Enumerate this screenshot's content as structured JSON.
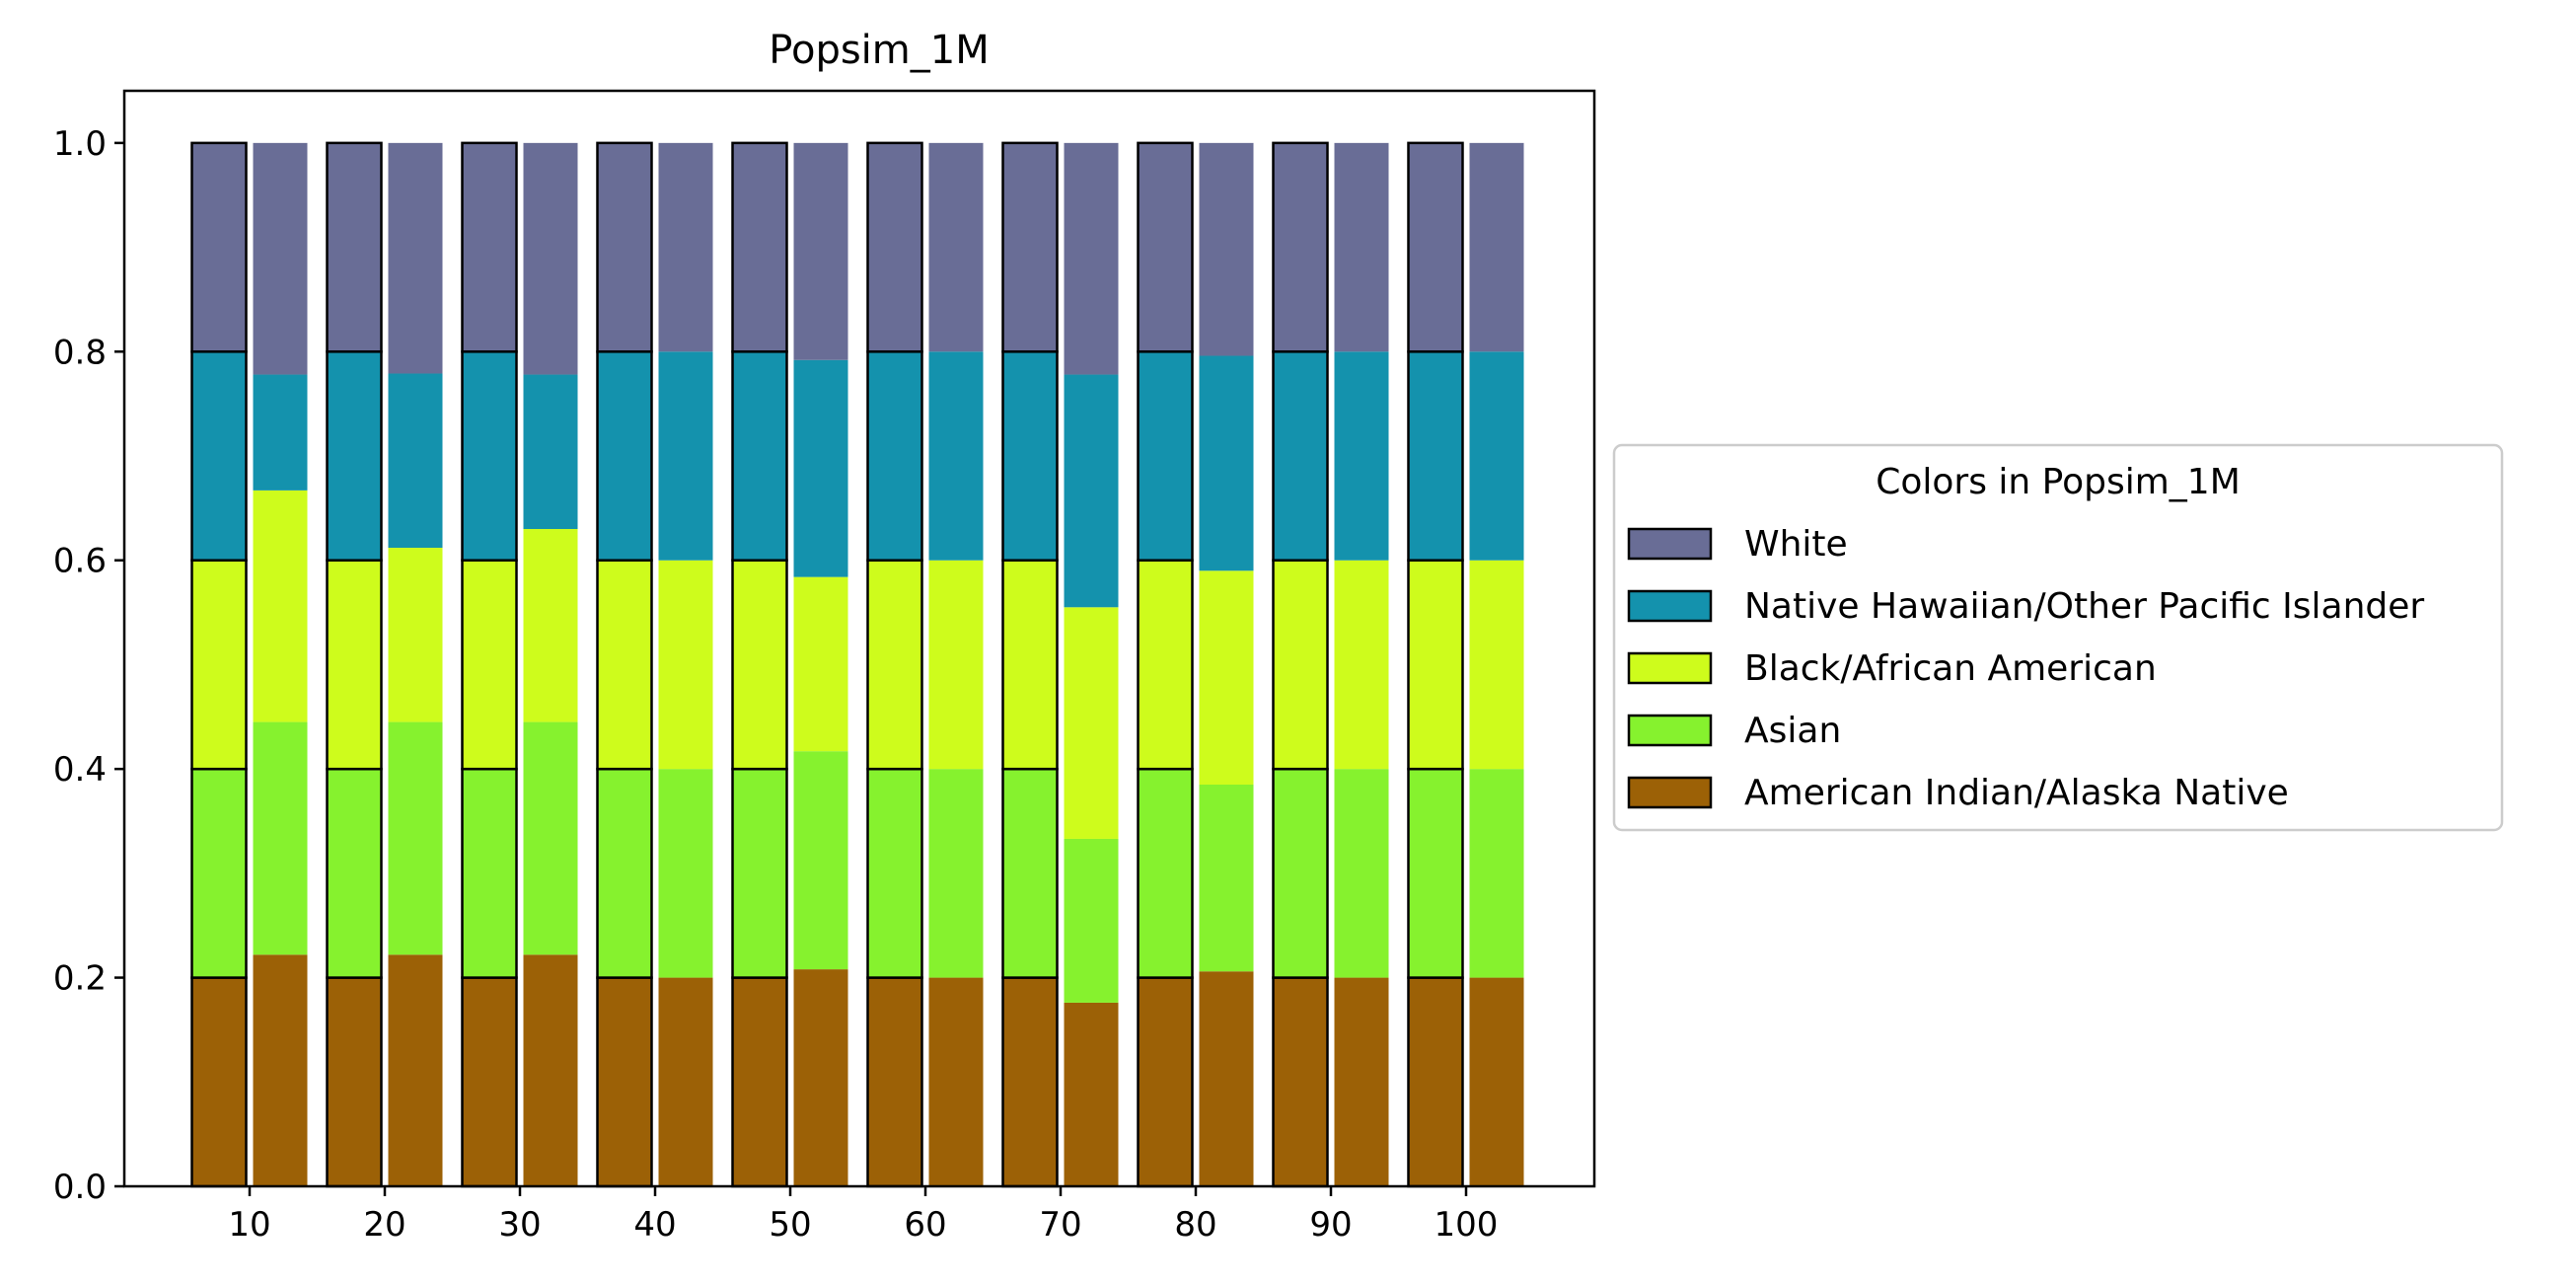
{
  "chart_data": {
    "type": "bar",
    "stacked": true,
    "grouped": true,
    "title": "Popsim_1M",
    "xlabel": "",
    "ylabel": "",
    "x": [
      10,
      20,
      30,
      40,
      50,
      60,
      70,
      80,
      90,
      100
    ],
    "x_tick_labels": [
      "10",
      "20",
      "30",
      "40",
      "50",
      "60",
      "70",
      "80",
      "90",
      "100"
    ],
    "ylim": [
      0,
      1.05
    ],
    "y_ticks": [
      0.0,
      0.2,
      0.4,
      0.6,
      0.8,
      1.0
    ],
    "y_tick_labels": [
      "0.0",
      "0.2",
      "0.4",
      "0.6",
      "0.8",
      "1.0"
    ],
    "grid": false,
    "bar_groups": [
      "outlined",
      "filled"
    ],
    "legend": {
      "title": "Colors in Popsim_1M",
      "placement": "right",
      "entries": [
        "White",
        "Native Hawaiian/Other Pacific Islander",
        "Black/African American",
        "Asian",
        "American Indian/Alaska Native"
      ]
    },
    "series": [
      {
        "name": "American Indian/Alaska Native",
        "color": "#9c6106",
        "outlined": [
          0.2,
          0.2,
          0.2,
          0.2,
          0.2,
          0.2,
          0.2,
          0.2,
          0.2,
          0.2
        ],
        "filled": [
          0.222,
          0.222,
          0.222,
          0.2,
          0.208,
          0.2,
          0.176,
          0.206,
          0.2,
          0.2
        ]
      },
      {
        "name": "Asian",
        "color": "#86f22e",
        "outlined": [
          0.2,
          0.2,
          0.2,
          0.2,
          0.2,
          0.2,
          0.2,
          0.2,
          0.2,
          0.2
        ],
        "filled": [
          0.223,
          0.223,
          0.223,
          0.2,
          0.209,
          0.2,
          0.157,
          0.179,
          0.2,
          0.2
        ]
      },
      {
        "name": "Black/African American",
        "color": "#cefc1c",
        "outlined": [
          0.2,
          0.2,
          0.2,
          0.2,
          0.2,
          0.2,
          0.2,
          0.2,
          0.2,
          0.2
        ],
        "filled": [
          0.222,
          0.167,
          0.185,
          0.2,
          0.167,
          0.2,
          0.222,
          0.205,
          0.2,
          0.2
        ]
      },
      {
        "name": "Native Hawaiian/Other Pacific Islander",
        "color": "#1492ad",
        "outlined": [
          0.2,
          0.2,
          0.2,
          0.2,
          0.2,
          0.2,
          0.2,
          0.2,
          0.2,
          0.2
        ],
        "filled": [
          0.111,
          0.167,
          0.148,
          0.2,
          0.208,
          0.2,
          0.223,
          0.206,
          0.2,
          0.2
        ]
      },
      {
        "name": "White",
        "color": "#696d96",
        "outlined": [
          0.2,
          0.2,
          0.2,
          0.2,
          0.2,
          0.2,
          0.2,
          0.2,
          0.2,
          0.2
        ],
        "filled": [
          0.222,
          0.221,
          0.222,
          0.2,
          0.208,
          0.2,
          0.222,
          0.204,
          0.2,
          0.2
        ]
      }
    ]
  }
}
